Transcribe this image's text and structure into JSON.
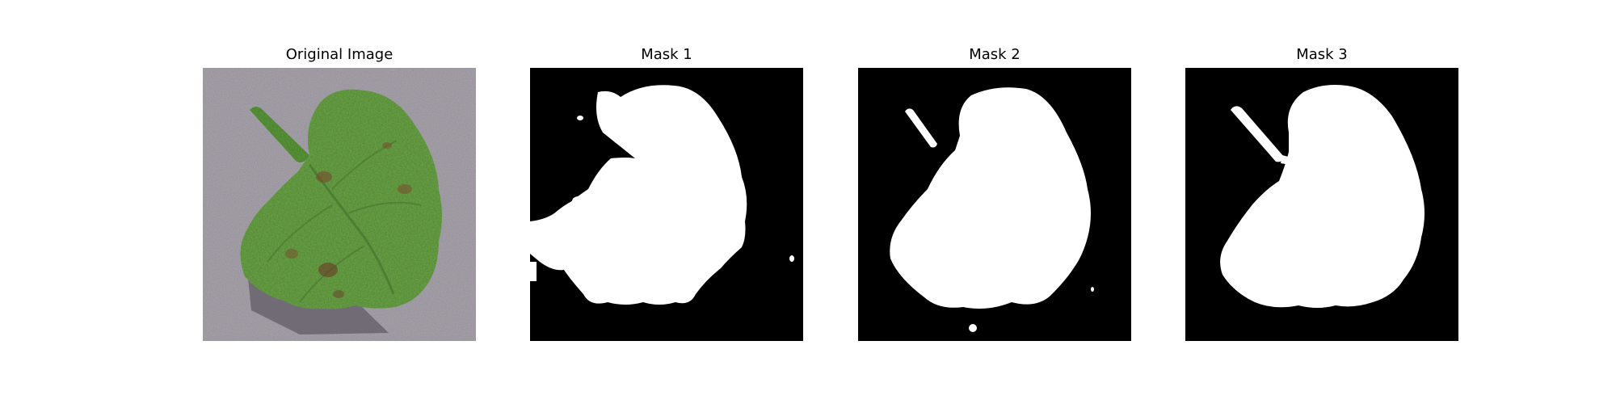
{
  "panels": [
    {
      "title": "Original Image",
      "kind": "photo"
    },
    {
      "title": "Mask 1",
      "kind": "mask"
    },
    {
      "title": "Mask 2",
      "kind": "mask"
    },
    {
      "title": "Mask 3",
      "kind": "mask"
    }
  ],
  "colors": {
    "background": "#ffffff",
    "mask_foreground": "#ffffff",
    "mask_background": "#000000",
    "leaf_green": "#6fa64a",
    "leaf_dark": "#3f6f2c",
    "gravel": "#a9a4ad"
  }
}
